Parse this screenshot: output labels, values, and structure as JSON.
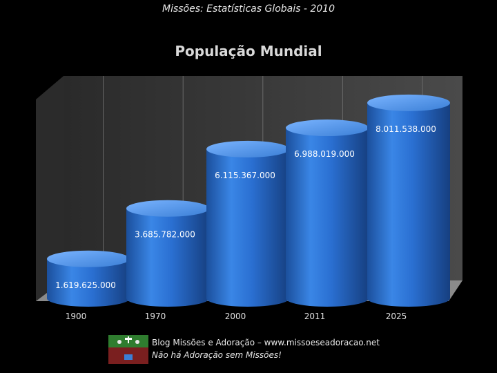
{
  "header": {
    "text": "Missões: Estatísticas Globais - 2010"
  },
  "footer": {
    "blog": "Blog Missões e Adoração – www.missoeseadoracao.net",
    "motto": "Não há Adoração sem Missões!",
    "logo_icon": "missions-logo-icon"
  },
  "colors": {
    "bar": "#2a6fd1",
    "bar_top": "#5a9ef0",
    "wall": "#3a3a3a",
    "grid": "#6a6a6a"
  },
  "chart_data": {
    "type": "bar",
    "title": "População Mundial",
    "categories": [
      "1900",
      "1970",
      "2000",
      "2011",
      "2025"
    ],
    "values": [
      1619625000,
      3685782000,
      6115367000,
      6988019000,
      8011538000
    ],
    "value_labels": [
      "1.619.625.000",
      "3.685.782.000",
      "6.115.367.000",
      "6.988.019.000",
      "8.011.538.000"
    ],
    "xlabel": "",
    "ylabel": "",
    "ylim": [
      0,
      10000000000
    ],
    "grid": true,
    "legend": "none",
    "style": "3d-cylinder"
  }
}
